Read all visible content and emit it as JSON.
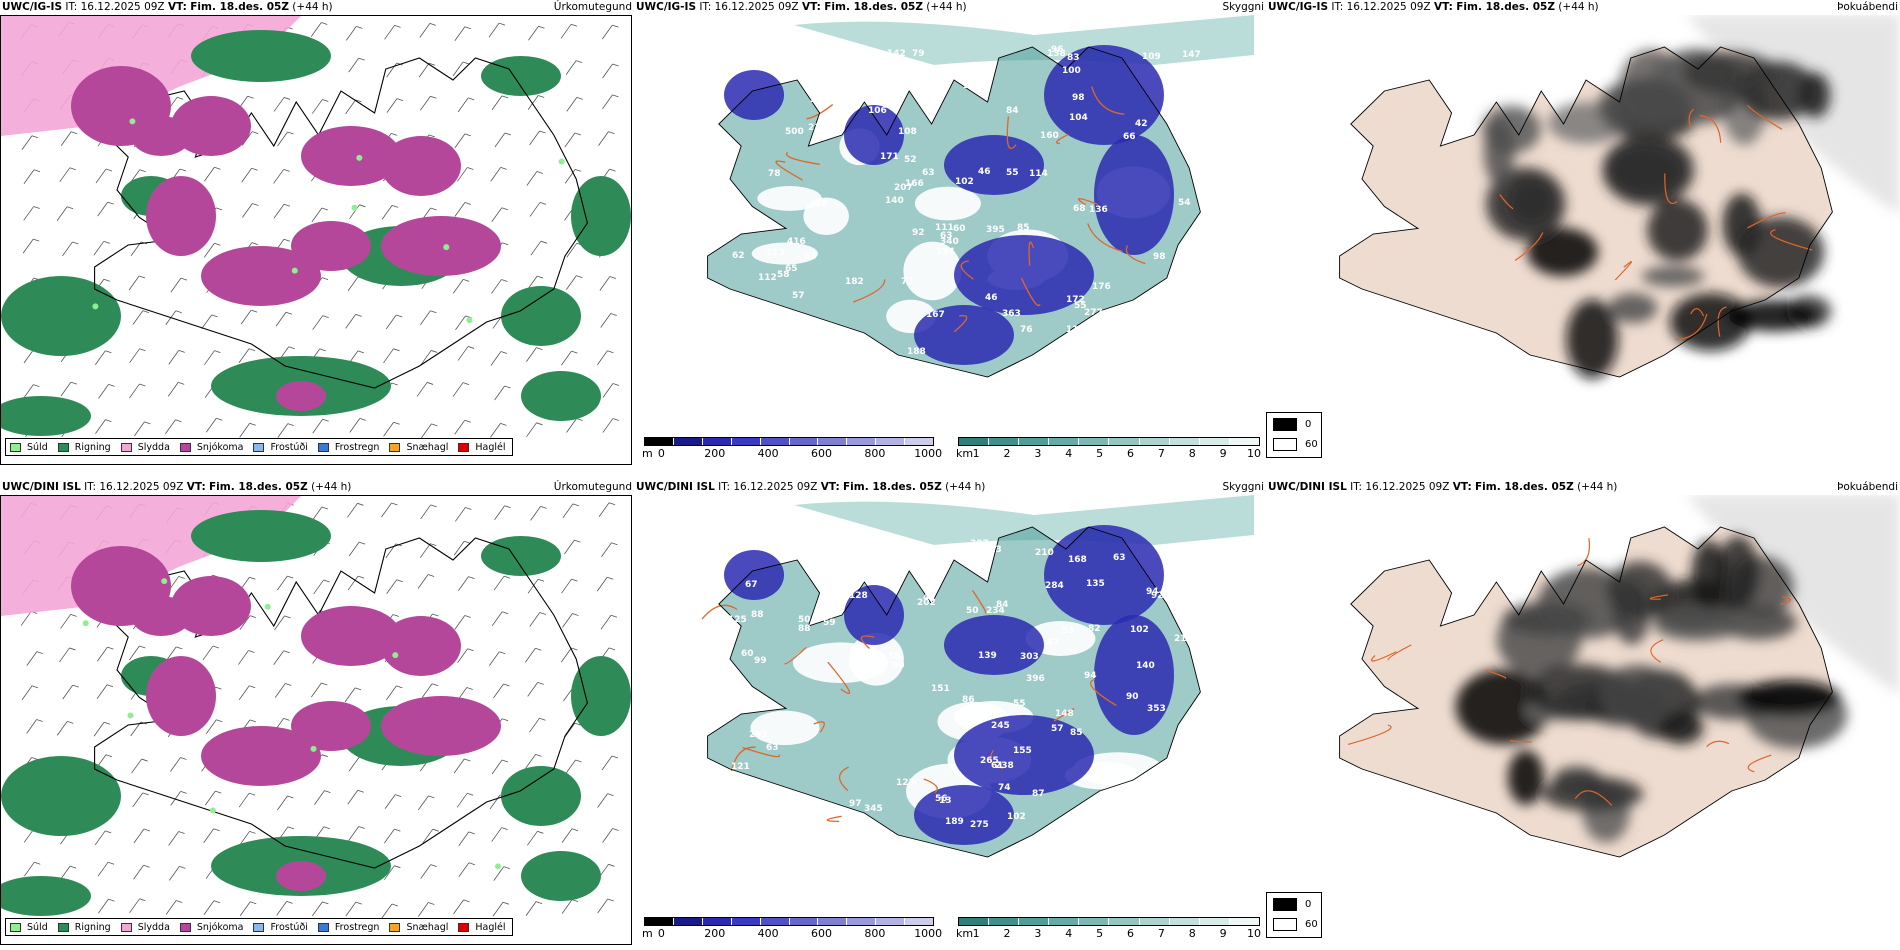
{
  "rows": [
    {
      "model": "UWC/IG-IS",
      "it_label": "IT:",
      "it_value": "16.12.2025 09Z",
      "vt_label": "VT:",
      "vt_value": "Fim. 18.des. 05Z",
      "lead": "(+44 h)",
      "precip_title": "Úrkomutegund",
      "cloud_title": "Skyggni",
      "fog_title": "Þokuábendi",
      "cloud_labels": [
        "113",
        "106",
        "111",
        "115",
        "256",
        "65",
        "63",
        "68",
        "85",
        "92",
        "147",
        "138",
        "109",
        "160",
        "170",
        "78",
        "60",
        "58",
        "55",
        "57",
        "46",
        "73",
        "58",
        "60",
        "55",
        "188",
        "63",
        "83",
        "56",
        "102",
        "57",
        "395",
        "46",
        "66",
        "100",
        "97",
        "207",
        "34",
        "52",
        "500",
        "130",
        "277",
        "416",
        "363",
        "194",
        "114",
        "62",
        "182",
        "96",
        "340",
        "98",
        "187",
        "166",
        "76",
        "113",
        "46",
        "42",
        "23",
        "171",
        "172",
        "98",
        "104",
        "136",
        "212",
        "320",
        "112",
        "167",
        "176",
        "166",
        "63",
        "54",
        "108",
        "79",
        "84",
        "142",
        "140",
        "108"
      ]
    },
    {
      "model": "UWC/DINI ISL",
      "it_label": "IT:",
      "it_value": "16.12.2025 09Z",
      "vt_label": "VT:",
      "vt_value": "Fim. 18.des. 05Z",
      "lead": "(+44 h)",
      "precip_title": "Úrkomutegund",
      "cloud_title": "Skyggni",
      "fog_title": "Þokuábendi",
      "cloud_labels": [
        "50",
        "51",
        "60",
        "50",
        "54",
        "84",
        "92",
        "102",
        "94",
        "140",
        "63",
        "236",
        "226",
        "128",
        "155",
        "121",
        "90",
        "88",
        "85",
        "83",
        "67",
        "42",
        "202",
        "151",
        "303",
        "88",
        "74",
        "190",
        "168",
        "123",
        "284",
        "238",
        "265",
        "63",
        "139",
        "245",
        "243",
        "275",
        "353",
        "56",
        "58",
        "54",
        "55",
        "50",
        "82",
        "53",
        "63",
        "61",
        "87",
        "93",
        "113",
        "90",
        "396",
        "307",
        "234",
        "42",
        "345",
        "135",
        "297",
        "86",
        "97",
        "47",
        "57",
        "59",
        "94",
        "642",
        "102",
        "210",
        "210",
        "189",
        "13",
        "148",
        "57",
        "99",
        "125"
      ]
    }
  ],
  "precip_legend": [
    {
      "label": "Súld",
      "color": "#90ee90"
    },
    {
      "label": "Rigning",
      "color": "#2e8b57"
    },
    {
      "label": "Slydda",
      "color": "#f4a6d7"
    },
    {
      "label": "Snjókoma",
      "color": "#b5479b"
    },
    {
      "label": "Frostúði",
      "color": "#87b8f0"
    },
    {
      "label": "Frostregn",
      "color": "#3a7bd5"
    },
    {
      "label": "Snæhagl",
      "color": "#f5a623"
    },
    {
      "label": "Haglél",
      "color": "#e00000"
    }
  ],
  "cloudbase_scale": {
    "unit": "m",
    "ticks": [
      "0",
      "200",
      "400",
      "600",
      "800",
      "1000"
    ],
    "colors": [
      "#000000",
      "#1a1a8a",
      "#2a2ab0",
      "#3a3ac4",
      "#5050c8",
      "#6666cc",
      "#7f7fd4",
      "#9999dd",
      "#b2b2e6",
      "#ccccee"
    ]
  },
  "visibility_scale": {
    "unit": "km",
    "ticks": [
      "1",
      "2",
      "3",
      "4",
      "5",
      "6",
      "7",
      "8",
      "9",
      "10"
    ],
    "colors": [
      "#2f7f7a",
      "#3f8f8a",
      "#4f9f99",
      "#66aca6",
      "#7db9b3",
      "#94c6c1",
      "#abd3cf",
      "#c2e0dc",
      "#d9ece9",
      "#eef7f5"
    ]
  },
  "fog_legend": [
    {
      "label": "0",
      "color": "#000000"
    },
    {
      "label": "60",
      "color": "#ffffff"
    }
  ],
  "colors": {
    "snow": "#b5479b",
    "rain": "#2e8b57",
    "sleet": "#f4a6d7",
    "drizzle": "#90ee90",
    "cloud_teal": "#4f9f99",
    "cloud_blue": "#2a2ab0",
    "coast": "#000000",
    "roads": "#e0662a",
    "land_fog": "#efdcd0"
  }
}
